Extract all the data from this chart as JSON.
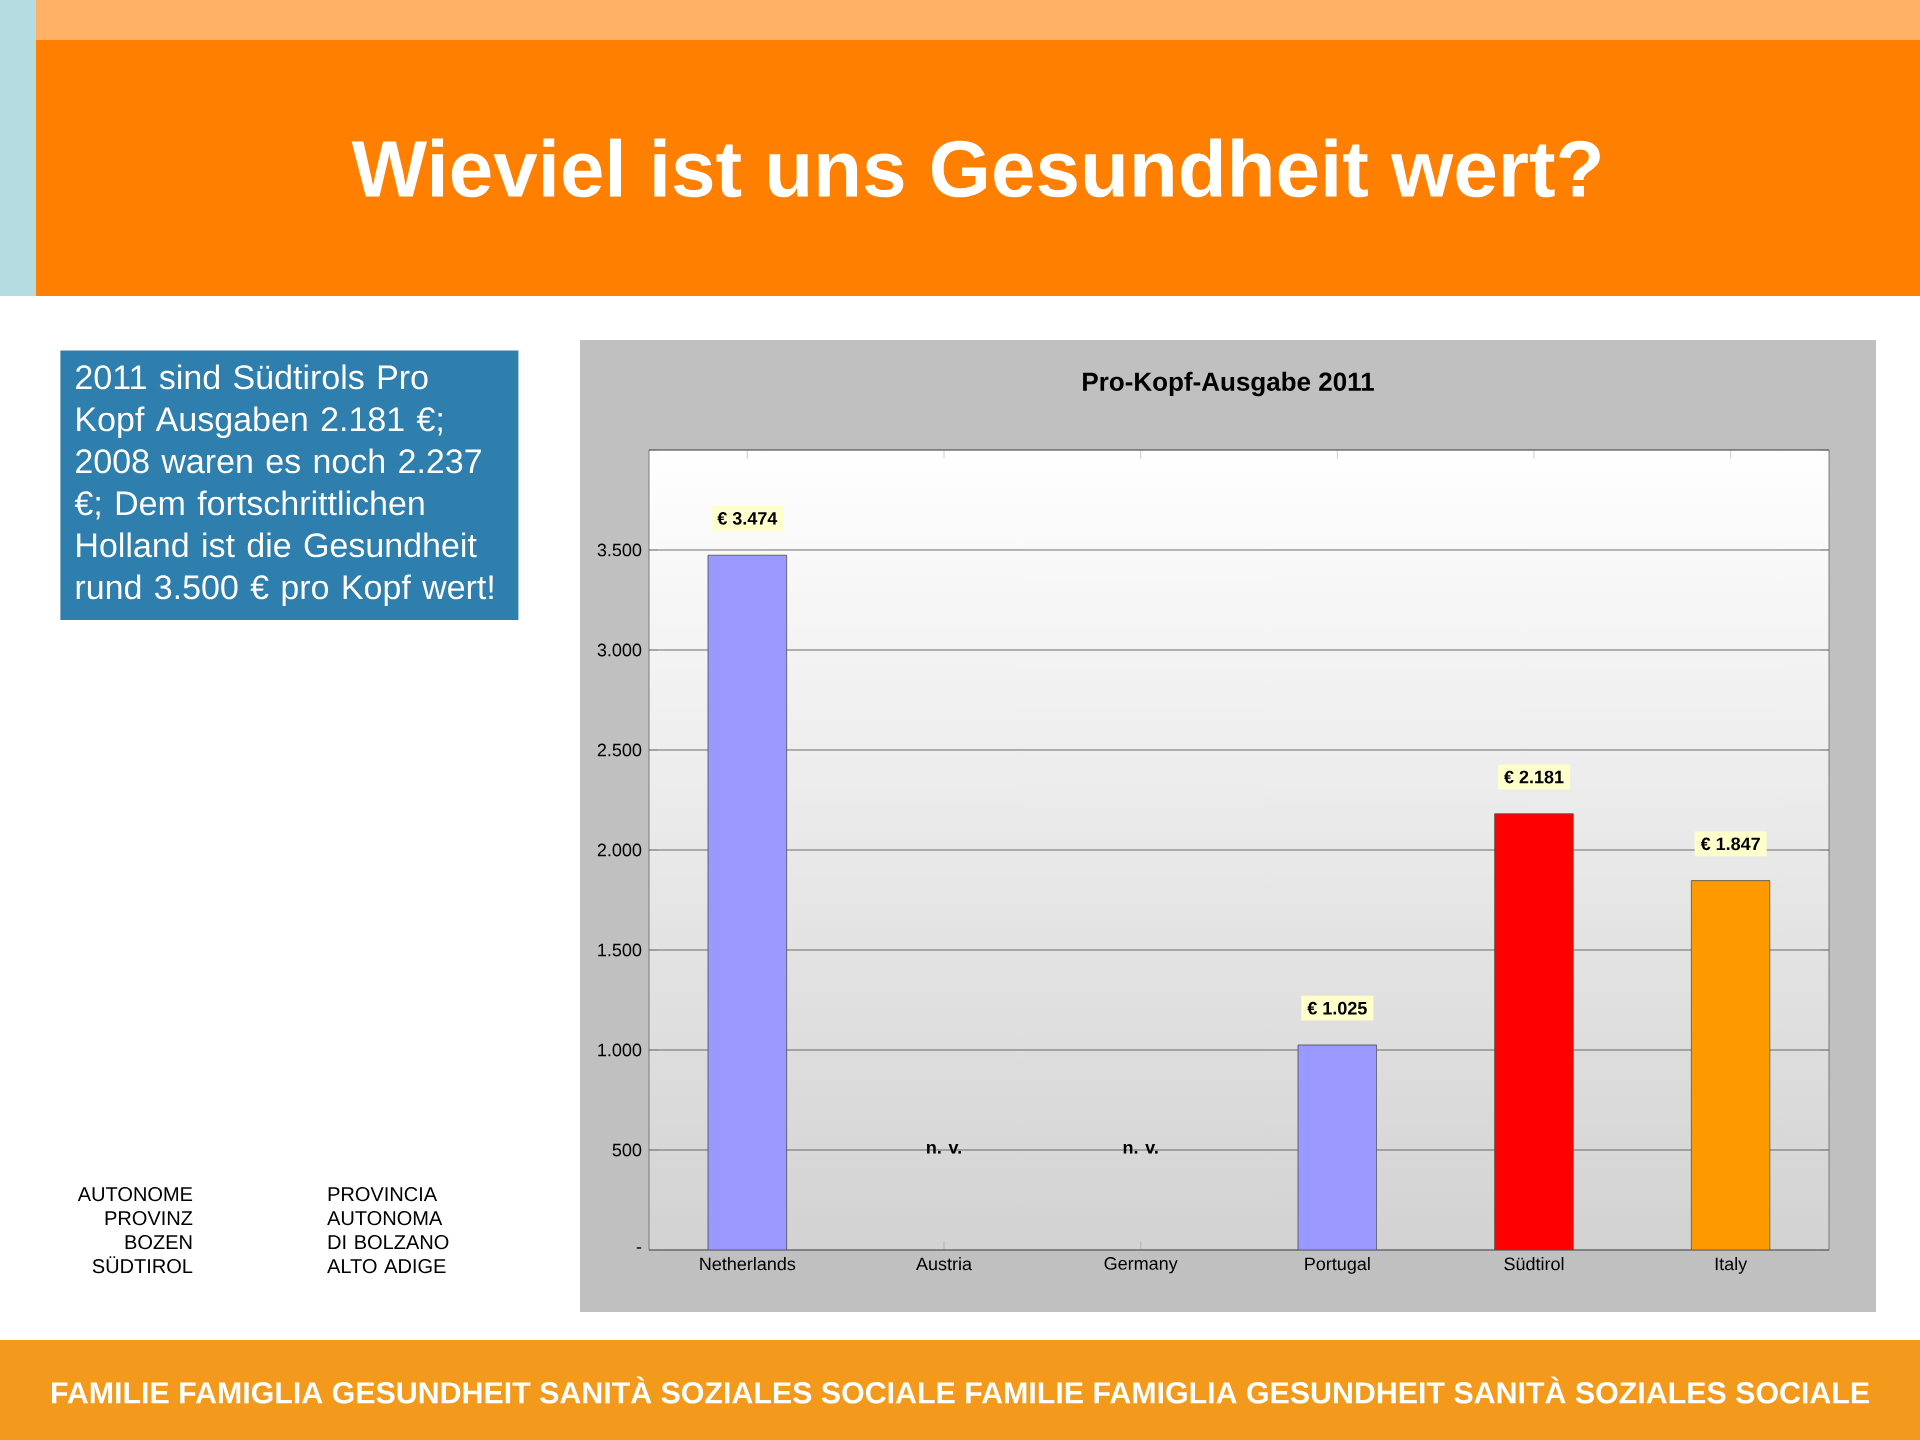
{
  "chart_data": {
    "type": "bar",
    "title": "Wieviel ist uns Gesundheit wert?",
    "subtitle": "Pro-Kopf-Ausgabe 2011",
    "categories": [
      "Netherlands",
      "Austria",
      "Germany",
      "Portugal",
      "Südtirol",
      "Italy"
    ],
    "values": [
      3474,
      null,
      null,
      1025,
      2181,
      1847
    ],
    "colors": [
      "#9999ff",
      "#9999ff",
      "#9999ff",
      "#9999ff",
      "#ff0000",
      "#ff9900"
    ],
    "value_labels": [
      "€ 3.474",
      "n. v.",
      "n. v.",
      "€ 1.025",
      "€ 2.181",
      "€ 1.847"
    ],
    "ylim": [
      0,
      4000
    ],
    "yticks": [
      {
        "value": 0,
        "label": "-"
      },
      500,
      {
        "value": 1000,
        "label": "1.000"
      },
      {
        "value": 1500,
        "label": "1.500"
      },
      {
        "value": 2000,
        "label": "2.000"
      },
      {
        "value": 2500,
        "label": "2.500"
      },
      {
        "value": 3000,
        "label": "3.000"
      },
      {
        "value": 3500,
        "label": "3.500"
      },
      {
        "value": 4000,
        "label": null
      }
    ],
    "grid": "y",
    "annotations": [
      "2011 sind Südtirols Pro Kopf Ausgaben 2.181 €; 2008 waren es noch 2.237 €; Dem fortschrittlichen Holland ist die Gesundheit rund 3.500 € pro Kopf wert!",
      "AUTONOME PROVINZ BOZEN SÜDTIROL",
      "PROVINCIA AUTONOMA DI BOLZANO ALTO ADIGE",
      "FAMILIE FAMIGLIA GESUNDHEIT SANITÀ SOZIALES SOCIALE FAMILIE FAMIGLIA GESUNDHEIT SANITÀ SOZIALES SOCIALE"
    ]
  }
}
